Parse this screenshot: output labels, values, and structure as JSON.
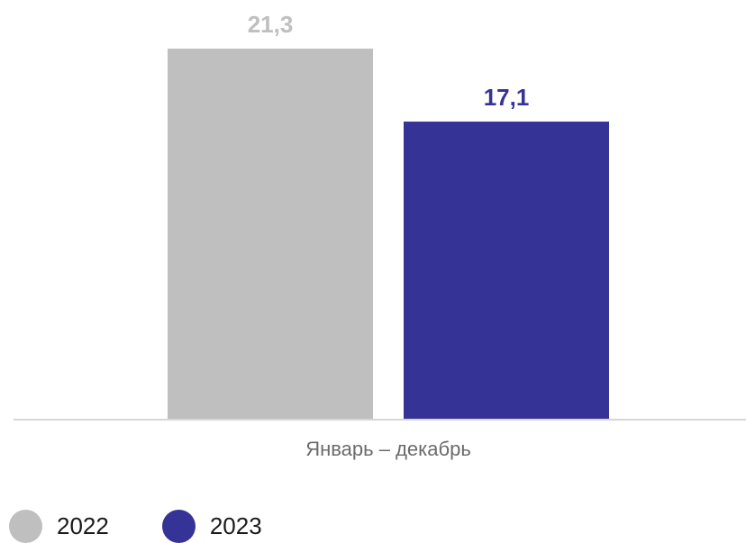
{
  "chart_data": {
    "type": "bar",
    "categories": [
      "Январь – декабрь"
    ],
    "series": [
      {
        "name": "2022",
        "values": [
          21.3
        ],
        "label": "21,3",
        "color": "#bfbfbf",
        "label_color": "#bfbfbf"
      },
      {
        "name": "2023",
        "values": [
          17.1
        ],
        "label": "17,1",
        "color": "#363396",
        "label_color": "#363396"
      }
    ],
    "ylim": [
      0,
      21.3
    ],
    "grid": false,
    "legend_position": "bottom-left"
  }
}
